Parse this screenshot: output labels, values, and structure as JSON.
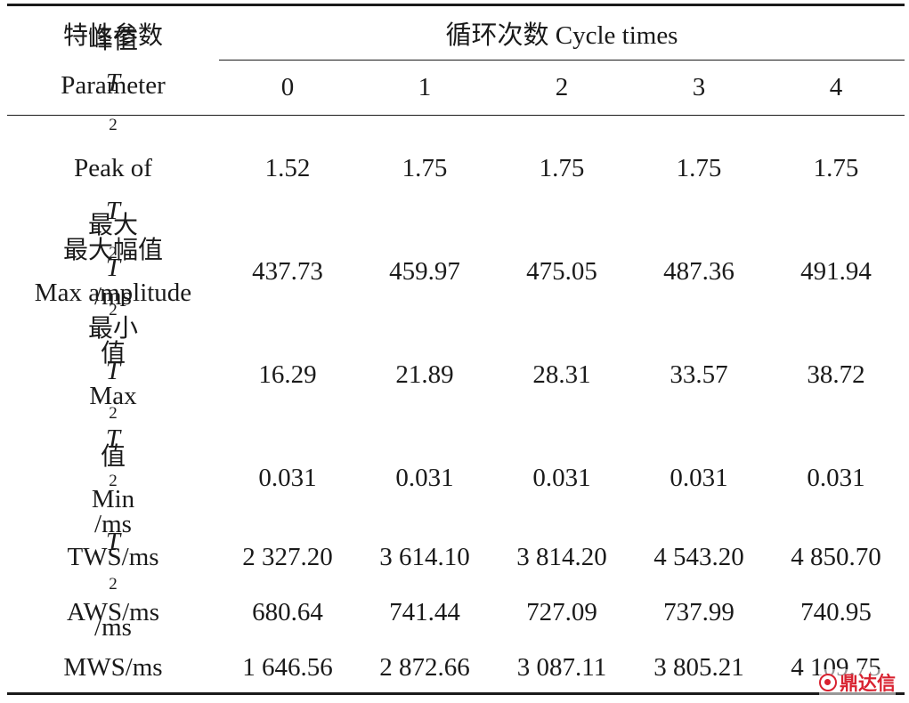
{
  "header": {
    "param_cn": "特性参数",
    "param_en": "Parameter",
    "group_label": "循环次数 Cycle times",
    "cycles": [
      "0",
      "1",
      "2",
      "3",
      "4"
    ]
  },
  "rows": [
    {
      "cn_parts": [
        "峰值 ",
        "T",
        "2",
        ""
      ],
      "en_parts": [
        "Peak of ",
        "T",
        "2",
        "/ms"
      ],
      "values": [
        "1.52",
        "1.75",
        "1.75",
        "1.75",
        "1.75"
      ]
    },
    {
      "cn": "最大幅值",
      "en": "Max amplitude",
      "values": [
        "437.73",
        "459.97",
        "475.05",
        "487.36",
        "491.94"
      ]
    },
    {
      "cn_parts": [
        "最大 ",
        "T",
        "2",
        "值"
      ],
      "en_parts": [
        "Max ",
        "T",
        "2",
        "/ms"
      ],
      "values": [
        "16.29",
        "21.89",
        "28.31",
        "33.57",
        "38.72"
      ]
    },
    {
      "cn_parts": [
        "最小 ",
        "T",
        "2",
        "值"
      ],
      "en_parts": [
        "Min ",
        "T",
        "2",
        "/ms"
      ],
      "values": [
        "0.031",
        "0.031",
        "0.031",
        "0.031",
        "0.031"
      ]
    },
    {
      "label": "TWS/ms",
      "values": [
        "2 327.20",
        "3 614.10",
        "3 814.20",
        "4 543.20",
        "4 850.70"
      ]
    },
    {
      "label": "AWS/ms",
      "values": [
        "680.64",
        "741.44",
        "727.09",
        "737.99",
        "740.95"
      ]
    },
    {
      "label": "MWS/ms",
      "values": [
        "1 646.56",
        "2 872.66",
        "3 087.11",
        "3 805.21",
        "4 109.75"
      ]
    }
  ],
  "watermark": {
    "text": "鼎达信",
    "icon": "logo-icon",
    "color": "#d8212f"
  }
}
